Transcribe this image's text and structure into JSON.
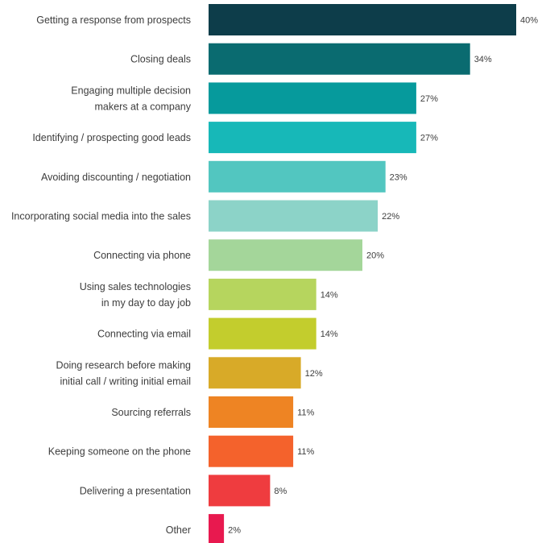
{
  "chart_data": {
    "type": "bar",
    "orientation": "horizontal",
    "title": "",
    "xlabel": "",
    "ylabel": "",
    "xlim": [
      0,
      40
    ],
    "grid": false,
    "legend": "none",
    "value_suffix": "%",
    "categories": [
      [
        "Getting a response from prospects"
      ],
      [
        "Closing deals"
      ],
      [
        "Engaging multiple decision",
        "makers at a company"
      ],
      [
        "Identifying / prospecting good leads"
      ],
      [
        "Avoiding discounting / negotiation"
      ],
      [
        "Incorporating social media into the sales"
      ],
      [
        "Connecting via phone"
      ],
      [
        "Using sales technologies",
        "in my day to day job"
      ],
      [
        "Connecting via email"
      ],
      [
        "Doing research before making",
        "initial call / writing initial email"
      ],
      [
        "Sourcing referrals"
      ],
      [
        "Keeping someone on the phone"
      ],
      [
        "Delivering a presentation"
      ],
      [
        "Other"
      ]
    ],
    "values": [
      40,
      34,
      27,
      27,
      23,
      22,
      20,
      14,
      14,
      12,
      11,
      11,
      8,
      2
    ],
    "colors": [
      "#0d3d4a",
      "#0a6b70",
      "#069a9c",
      "#17b8b8",
      "#52c6c0",
      "#8cd3c8",
      "#a4d69a",
      "#b6d55e",
      "#c3cd2d",
      "#d8aa28",
      "#ee8423",
      "#f4622c",
      "#ef3c3f",
      "#e8194f"
    ]
  }
}
